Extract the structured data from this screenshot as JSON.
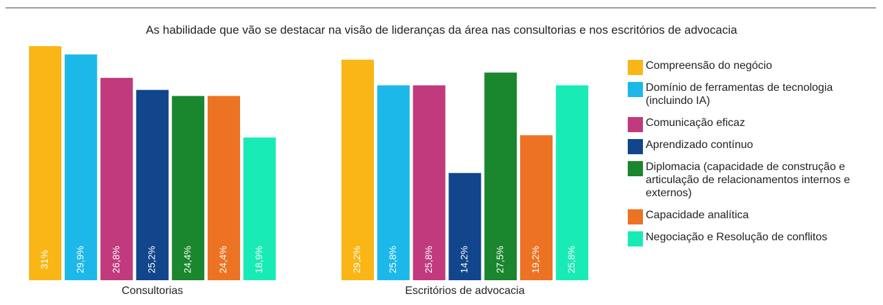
{
  "chart_data": {
    "type": "bar",
    "title": "As habilidade que vão se destacar na visão de lideranças da área nas consultorias e nos escritórios de advocacia",
    "groups": [
      {
        "name": "Consultorias",
        "values": [
          31,
          29.9,
          26.8,
          25.2,
          24.4,
          24.4,
          18.9
        ],
        "labels": [
          "31%",
          "29,9%",
          "26,8%",
          "25,2%",
          "24,4%",
          "24,4%",
          "18,9%"
        ]
      },
      {
        "name": "Escritórios de advocacia",
        "values": [
          29.2,
          25.8,
          25.8,
          14.2,
          27.5,
          19.2,
          25.8
        ],
        "labels": [
          "29,2%",
          "25,8%",
          "25,8%",
          "14,2%",
          "27,5%",
          "19,2%",
          "25,8%"
        ]
      }
    ],
    "series": [
      {
        "name": "Compreensão do negócio",
        "color": "#F9B616"
      },
      {
        "name": "Domínio de ferramentas de tecnologia (incluindo IA)",
        "color": "#1DB8EA"
      },
      {
        "name": "Comunicação eficaz",
        "color": "#C13A7E"
      },
      {
        "name": "Aprendizado contínuo",
        "color": "#11458C"
      },
      {
        "name": "Diplomacia (capacidade de construção e articulação de relacionamentos internos e externos)",
        "color": "#1A862E"
      },
      {
        "name": "Capacidade analítica",
        "color": "#EC7323"
      },
      {
        "name": "Negociação e Resolução de conflitos",
        "color": "#19EBB6"
      }
    ],
    "ylim": [
      0,
      31
    ],
    "legend_position": "right",
    "grid": false
  }
}
